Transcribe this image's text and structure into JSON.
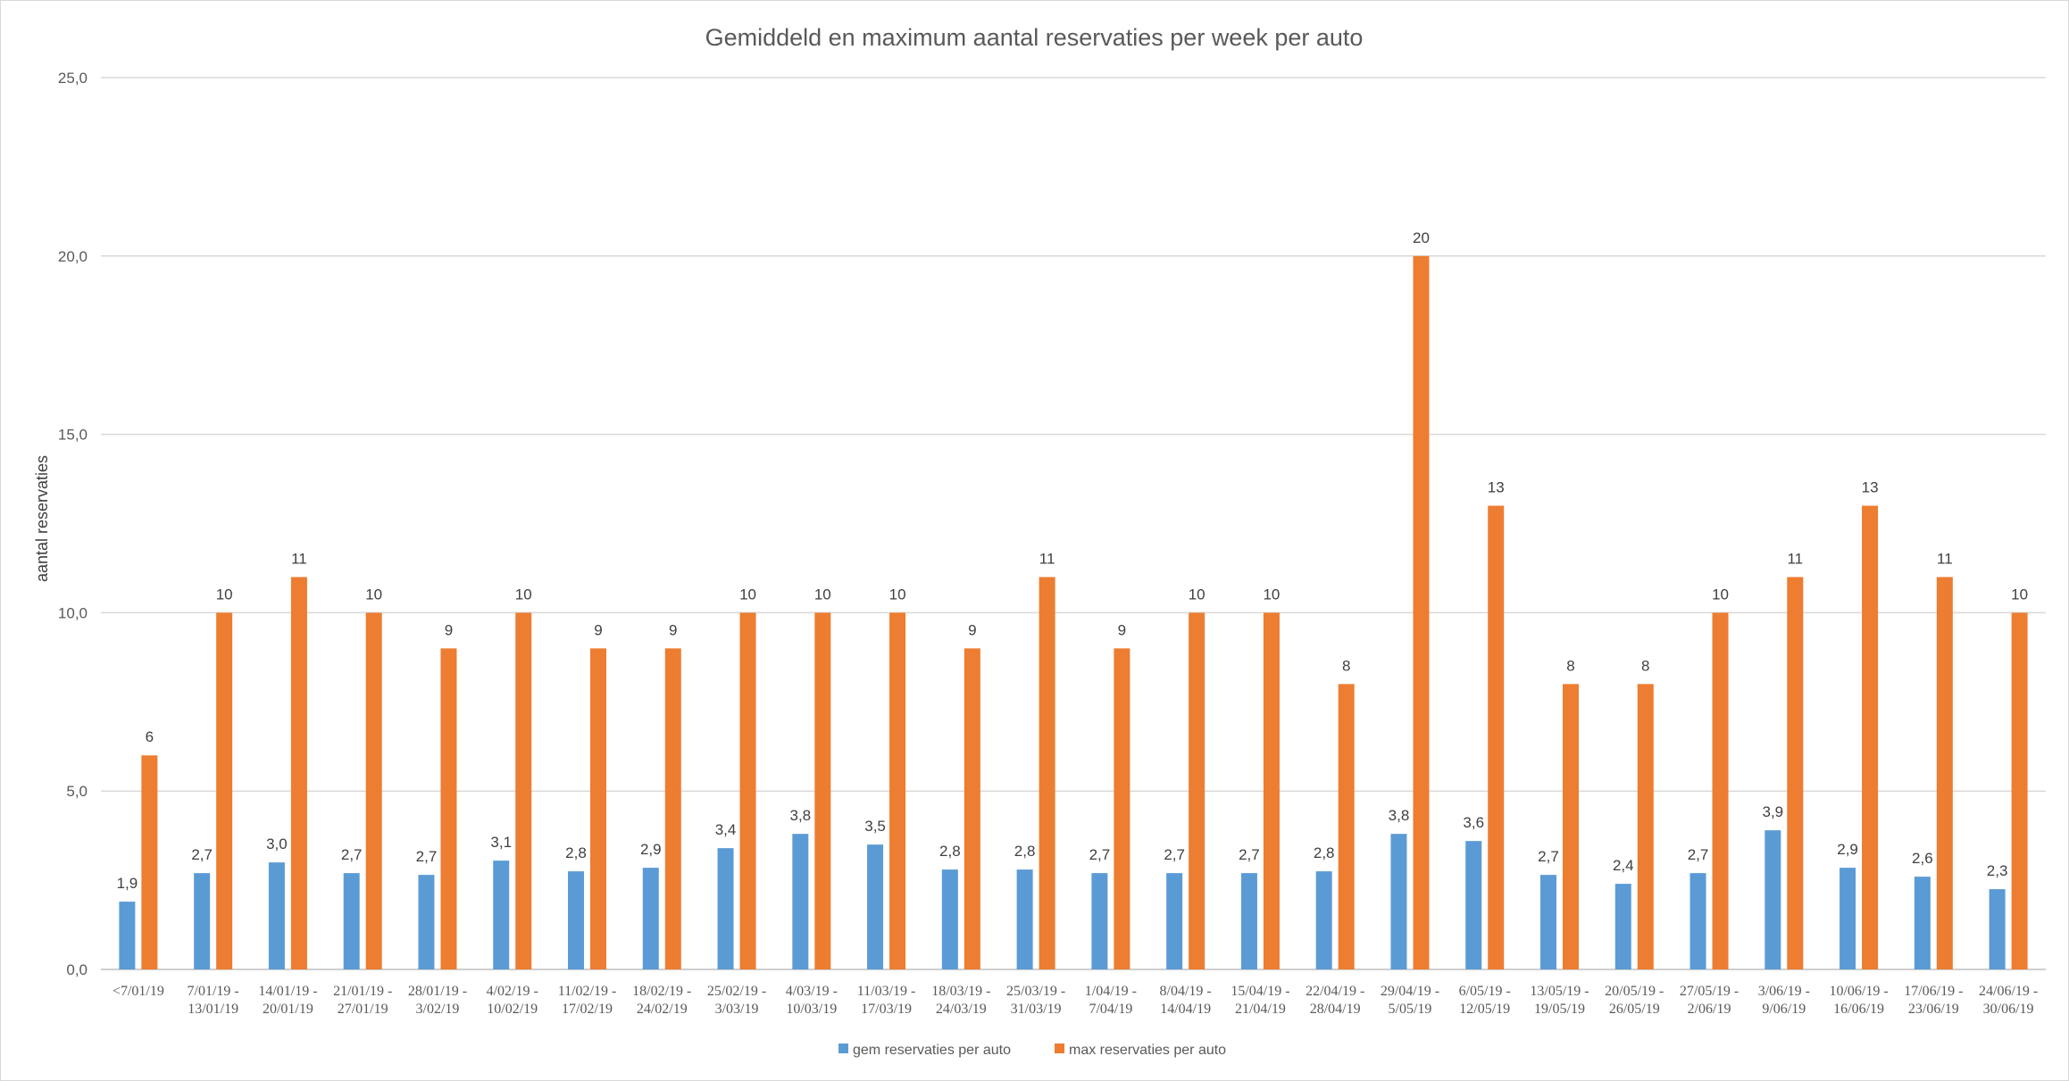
{
  "chart_data": {
    "type": "bar",
    "title": "Gemiddeld en maximum aantal reservaties per week per auto",
    "ylabel": "aantal reservaties",
    "xlabel": "",
    "ylim": [
      0,
      25
    ],
    "yticks": [
      0,
      5,
      10,
      15,
      20,
      25
    ],
    "ytick_labels": [
      "0,0",
      "5,0",
      "10,0",
      "15,0",
      "20,0",
      "25,0"
    ],
    "grid": true,
    "legend_position": "bottom",
    "categories": [
      [
        "<7/01/19"
      ],
      [
        "7/01/19 -",
        "13/01/19"
      ],
      [
        "14/01/19 -",
        "20/01/19"
      ],
      [
        "21/01/19 -",
        "27/01/19"
      ],
      [
        "28/01/19 -",
        "3/02/19"
      ],
      [
        "4/02/19 -",
        "10/02/19"
      ],
      [
        "11/02/19 -",
        "17/02/19"
      ],
      [
        "18/02/19 -",
        "24/02/19"
      ],
      [
        "25/02/19 -",
        "3/03/19"
      ],
      [
        "4/03/19 -",
        "10/03/19"
      ],
      [
        "11/03/19 -",
        "17/03/19"
      ],
      [
        "18/03/19 -",
        "24/03/19"
      ],
      [
        "25/03/19 -",
        "31/03/19"
      ],
      [
        "1/04/19 -",
        "7/04/19"
      ],
      [
        "8/04/19 -",
        "14/04/19"
      ],
      [
        "15/04/19 -",
        "21/04/19"
      ],
      [
        "22/04/19 -",
        "28/04/19"
      ],
      [
        "29/04/19 -",
        "5/05/19"
      ],
      [
        "6/05/19 -",
        "12/05/19"
      ],
      [
        "13/05/19 -",
        "19/05/19"
      ],
      [
        "20/05/19 -",
        "26/05/19"
      ],
      [
        "27/05/19 -",
        "2/06/19"
      ],
      [
        "3/06/19 -",
        "9/06/19"
      ],
      [
        "10/06/19 -",
        "16/06/19"
      ],
      [
        "17/06/19 -",
        "23/06/19"
      ],
      [
        "24/06/19 -",
        "30/06/19"
      ]
    ],
    "series": [
      {
        "name": "gem reservaties per auto",
        "color": "#5b9bd5",
        "values": [
          1.9,
          2.7,
          3.0,
          2.7,
          2.65,
          3.05,
          2.75,
          2.85,
          3.4,
          3.8,
          3.5,
          2.8,
          2.8,
          2.7,
          2.7,
          2.7,
          2.75,
          3.8,
          3.6,
          2.65,
          2.4,
          2.7,
          3.9,
          2.85,
          2.6,
          2.25
        ],
        "labels": [
          "1,9",
          "2,7",
          "3,0",
          "2,7",
          "2,7",
          "3,1",
          "2,8",
          "2,9",
          "3,4",
          "3,8",
          "3,5",
          "2,8",
          "2,8",
          "2,7",
          "2,7",
          "2,7",
          "2,8",
          "3,8",
          "3,6",
          "2,7",
          "2,4",
          "2,7",
          "3,9",
          "2,9",
          "2,6",
          "2,3"
        ]
      },
      {
        "name": "max reservaties per auto",
        "color": "#ed7d31",
        "values": [
          6,
          10,
          11,
          10,
          9,
          10,
          9,
          9,
          10,
          10,
          10,
          9,
          11,
          9,
          10,
          10,
          8,
          20,
          13,
          8,
          8,
          10,
          11,
          13,
          11,
          10
        ],
        "labels": [
          "6",
          "10",
          "11",
          "10",
          "9",
          "10",
          "9",
          "9",
          "10",
          "10",
          "10",
          "9",
          "11",
          "9",
          "10",
          "10",
          "8",
          "20",
          "13",
          "8",
          "8",
          "10",
          "11",
          "13",
          "11",
          "10"
        ]
      }
    ]
  }
}
